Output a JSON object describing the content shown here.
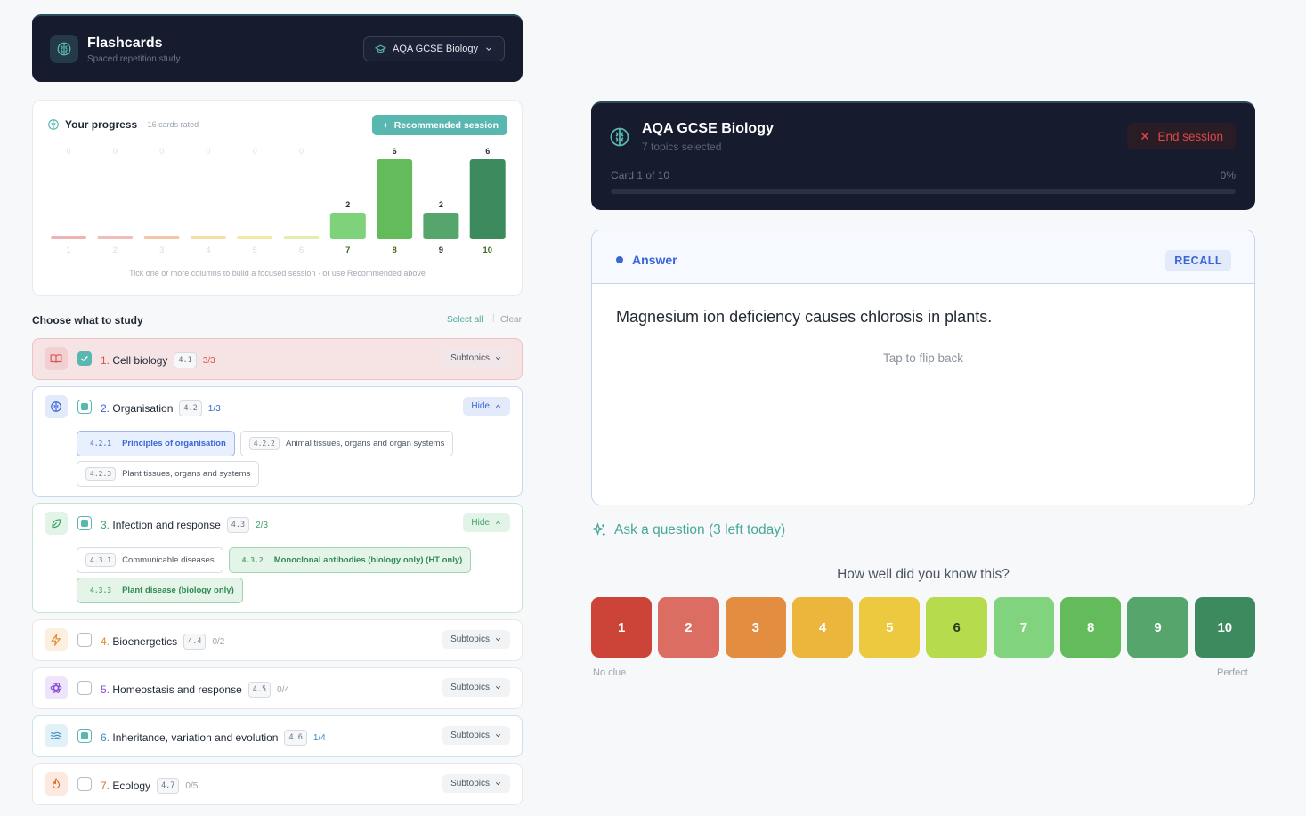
{
  "app": {
    "title": "Flashcards",
    "subtitle": "Spaced repetition study",
    "subject": "AQA GCSE Biology"
  },
  "progress": {
    "title": "Your progress",
    "meta": "· 16 cards rated",
    "recommended_label": "Recommended session",
    "hint": "Tick one or more columns to build a focused session · or use Recommended above"
  },
  "chart_data": {
    "type": "bar",
    "categories": [
      "1",
      "2",
      "3",
      "4",
      "5",
      "6",
      "7",
      "8",
      "9",
      "10"
    ],
    "values": [
      0,
      0,
      0,
      0,
      0,
      0,
      2,
      6,
      2,
      6
    ],
    "colors": [
      "#e89a9a",
      "#eba6a6",
      "#f0b28a",
      "#f2d18a",
      "#f2df86",
      "#d8e896",
      "#7dd27a",
      "#63bb5c",
      "#56a56c",
      "#3d8a5e"
    ],
    "ylim": [
      0,
      6
    ]
  },
  "choose": {
    "title": "Choose what to study",
    "select_all": "Select all",
    "separator": "|",
    "clear": "Clear"
  },
  "topics": [
    {
      "num": "1.",
      "name": "Cell biology",
      "code": "4.1",
      "count": "3/3",
      "button": "Subtopics",
      "icon": "book-open-icon",
      "state": "checked",
      "accent": "#d9534f"
    },
    {
      "num": "2.",
      "name": "Organisation",
      "code": "4.2",
      "count": "1/3",
      "button": "Hide",
      "icon": "brain-icon",
      "state": "partial",
      "accent": "#3a66d6",
      "subtopics": [
        {
          "code": "4.2.1",
          "label": "Principles of organisation",
          "selected": true
        },
        {
          "code": "4.2.2",
          "label": "Animal tissues, organs and organ systems",
          "selected": false
        },
        {
          "code": "4.2.3",
          "label": "Plant tissues, organs and systems",
          "selected": false
        }
      ]
    },
    {
      "num": "3.",
      "name": "Infection and response",
      "code": "4.3",
      "count": "2/3",
      "button": "Hide",
      "icon": "leaf-icon",
      "state": "partial",
      "accent": "#3fa068",
      "subtopics": [
        {
          "code": "4.3.1",
          "label": "Communicable diseases",
          "selected": false
        },
        {
          "code": "4.3.2",
          "label": "Monoclonal antibodies (biology only) (HT only)",
          "selected": true
        },
        {
          "code": "4.3.3",
          "label": "Plant disease (biology only)",
          "selected": true
        }
      ]
    },
    {
      "num": "4.",
      "name": "Bioenergetics",
      "code": "4.4",
      "count": "0/2",
      "button": "Subtopics",
      "icon": "lightning-icon",
      "state": "unchecked",
      "accent": "#e0892f"
    },
    {
      "num": "5.",
      "name": "Homeostasis and response",
      "code": "4.5",
      "count": "0/4",
      "button": "Subtopics",
      "icon": "atom-icon",
      "state": "unchecked",
      "accent": "#8a4fd6"
    },
    {
      "num": "6.",
      "name": "Inheritance, variation and evolution",
      "code": "4.6",
      "count": "1/4",
      "button": "Subtopics",
      "icon": "wave-icon",
      "state": "partial",
      "accent": "#3a8fc6"
    },
    {
      "num": "7.",
      "name": "Ecology",
      "code": "4.7",
      "count": "0/5",
      "button": "Subtopics",
      "icon": "flame-icon",
      "state": "unchecked",
      "accent": "#e06b2f"
    }
  ],
  "session": {
    "title": "AQA GCSE Biology",
    "subtitle": "7 topics selected",
    "end_label": "End session",
    "card_counter": "Card 1 of 10",
    "percent": "0%",
    "progress_fraction": 0
  },
  "card": {
    "side_label": "Answer",
    "mode_badge": "RECALL",
    "text": "Magnesium ion deficiency causes chlorosis in plants.",
    "flip_hint": "Tap to flip back"
  },
  "ask": {
    "label": "Ask a question (3 left today)"
  },
  "rating": {
    "question": "How well did you know this?",
    "buttons": [
      "1",
      "2",
      "3",
      "4",
      "5",
      "6",
      "7",
      "8",
      "9",
      "10"
    ],
    "colors": [
      "#cc4438",
      "#dc6d63",
      "#e28d3f",
      "#ecb53b",
      "#ecc93e",
      "#b6dc4d",
      "#82d37d",
      "#63bb5c",
      "#56a56c",
      "#3d8a5e"
    ],
    "low_label": "No clue",
    "high_label": "Perfect"
  }
}
